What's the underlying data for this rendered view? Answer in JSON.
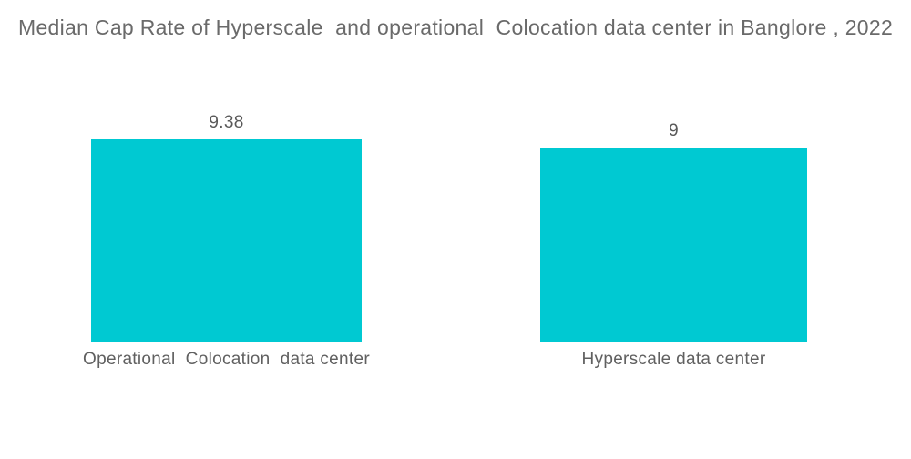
{
  "chart_data": {
    "type": "bar",
    "title": "Median Cap Rate of Hyperscale  and operational  Colocation data center in Banglore , 2022",
    "categories": [
      "Operational  Colocation  data center",
      "Hyperscale data center"
    ],
    "values": [
      9.38,
      9
    ],
    "value_labels": [
      "9.38",
      "9"
    ],
    "xlabel": "",
    "ylabel": "",
    "ylim": [
      0,
      10
    ],
    "grid": false,
    "legend": false,
    "axes_visible": false
  },
  "colors": {
    "bar": "#00C9D2",
    "title_text": "#6A6A6A",
    "label_text": "#606060",
    "background": "#FFFFFF"
  }
}
